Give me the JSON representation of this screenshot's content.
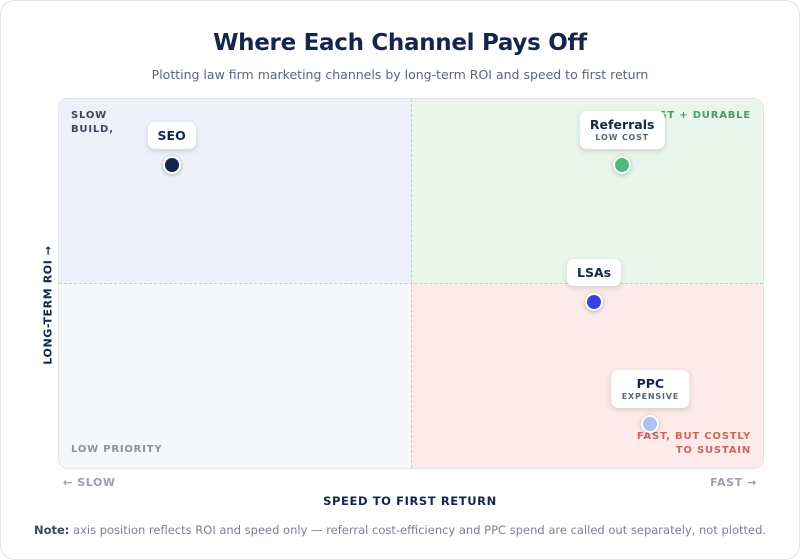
{
  "chart_data": {
    "type": "scatter",
    "title": "Where Each Channel Pays Off",
    "subtitle": "Plotting law firm marketing channels by long-term ROI and speed to first return",
    "xlabel": "SPEED TO FIRST RETURN",
    "ylabel": "LONG-TERM ROI →",
    "xtick_low": "← SLOW",
    "xtick_high": "FAST →",
    "xlim": [
      0,
      100
    ],
    "ylim": [
      0,
      100
    ],
    "grid": false,
    "quadrants": {
      "top_left": "SLOW BUILD, LASTING PAYOFF",
      "top_right": "FAST + DURABLE",
      "bottom_left": "LOW PRIORITY",
      "bottom_right": "FAST, BUT COSTLY TO SUSTAIN"
    },
    "points": [
      {
        "label": "SEO",
        "tag": "",
        "x": 16,
        "y": 82,
        "color": "#14264d"
      },
      {
        "label": "Referrals",
        "tag": "LOW COST",
        "x": 80,
        "y": 82,
        "color": "#4cbb7f"
      },
      {
        "label": "LSAs",
        "tag": "",
        "x": 76,
        "y": 45,
        "color": "#3b3fe6"
      },
      {
        "label": "PPC",
        "tag": "EXPENSIVE",
        "x": 84,
        "y": 12,
        "color": "#a9c3f2"
      }
    ]
  },
  "note": {
    "label": "Note:",
    "text": "axis position reflects ROI and speed only — referral cost-efficiency and PPC spend are called out separately, not plotted."
  }
}
